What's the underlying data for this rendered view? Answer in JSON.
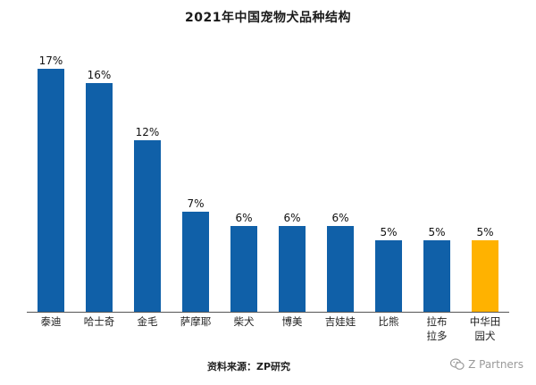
{
  "chart_data": {
    "type": "bar",
    "title": "2021年中国宠物犬品种结构",
    "categories": [
      [
        "泰迪"
      ],
      [
        "哈士奇"
      ],
      [
        "金毛"
      ],
      [
        "萨摩耶"
      ],
      [
        "柴犬"
      ],
      [
        "博美"
      ],
      [
        "吉娃娃"
      ],
      [
        "比熊"
      ],
      [
        "拉布",
        "拉多"
      ],
      [
        "中华田",
        "园犬"
      ]
    ],
    "values": [
      17,
      16,
      12,
      7,
      6,
      6,
      6,
      5,
      5,
      5
    ],
    "data_labels": [
      "17%",
      "16%",
      "12%",
      "7%",
      "6%",
      "6%",
      "6%",
      "5%",
      "5%",
      "5%"
    ],
    "unit": "%",
    "ylim": [
      0,
      17
    ],
    "colors": [
      "#1060a8",
      "#1060a8",
      "#1060a8",
      "#1060a8",
      "#1060a8",
      "#1060a8",
      "#1060a8",
      "#1060a8",
      "#1060a8",
      "#ffb200"
    ],
    "grid": false,
    "legend": "none"
  },
  "source_note": "资料来源：ZP研究",
  "watermark": {
    "icon": "wechat-icon",
    "text": "Z Partners"
  }
}
